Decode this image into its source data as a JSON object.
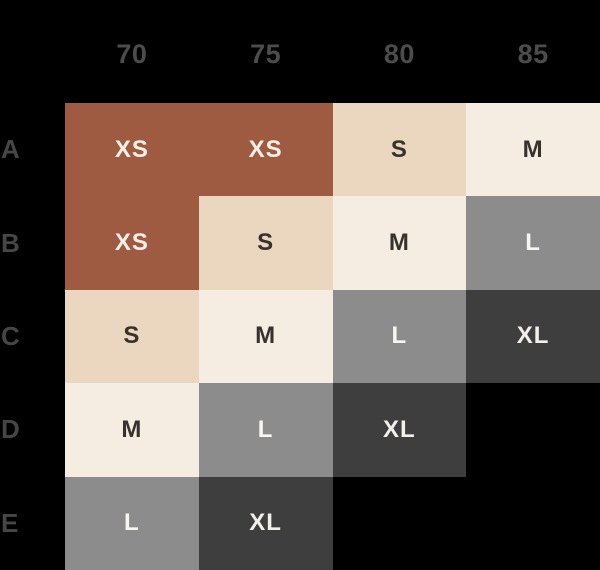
{
  "chart_data": {
    "type": "heatmap",
    "title": "",
    "x_categories": [
      "70",
      "75",
      "80",
      "85"
    ],
    "y_categories": [
      "A",
      "B",
      "C",
      "D",
      "E"
    ],
    "cell_values": [
      [
        "XS",
        "XS",
        "S",
        "M"
      ],
      [
        "XS",
        "S",
        "M",
        "L"
      ],
      [
        "S",
        "M",
        "L",
        "XL"
      ],
      [
        "M",
        "L",
        "XL",
        null
      ],
      [
        "L",
        "XL",
        null,
        null
      ]
    ],
    "value_colors": {
      "XS": "#9e5b42",
      "S": "#ebd6bf",
      "M": "#f5ece2",
      "L": "#8c8c8c",
      "XL": "#3e3e3e"
    },
    "legend_position": "none",
    "grid": false
  },
  "colors": {
    "background": "#000000",
    "header_text": "#4c4c4c",
    "row_label_text": "#464646",
    "dark_cell_text": "#37322d",
    "light_cell_text": "#f8f2ea"
  },
  "chart": {
    "column_headers": [
      "70",
      "75",
      "80",
      "85"
    ],
    "row_labels": [
      "A",
      "B",
      "C",
      "D",
      "E"
    ],
    "cells": [
      [
        {
          "label": "XS",
          "bg": "#9e5b42",
          "fg": "#f9f1e8"
        },
        {
          "label": "XS",
          "bg": "#9e5b42",
          "fg": "#f9f1e8"
        },
        {
          "label": "S",
          "bg": "#ebd6bf",
          "fg": "#37322d"
        },
        {
          "label": "M",
          "bg": "#f5ece2",
          "fg": "#37322d"
        }
      ],
      [
        {
          "label": "XS",
          "bg": "#9e5b42",
          "fg": "#f9f1e8"
        },
        {
          "label": "S",
          "bg": "#ebd6bf",
          "fg": "#37322d"
        },
        {
          "label": "M",
          "bg": "#f5ece2",
          "fg": "#37322d"
        },
        {
          "label": "L",
          "bg": "#8c8c8c",
          "fg": "#f8f6f2"
        }
      ],
      [
        {
          "label": "S",
          "bg": "#ebd6bf",
          "fg": "#37322d"
        },
        {
          "label": "M",
          "bg": "#f5ece2",
          "fg": "#37322d"
        },
        {
          "label": "L",
          "bg": "#8c8c8c",
          "fg": "#f8f6f2"
        },
        {
          "label": "XL",
          "bg": "#3e3e3e",
          "fg": "#f3f0ec"
        }
      ],
      [
        {
          "label": "M",
          "bg": "#f5ece2",
          "fg": "#37322d"
        },
        {
          "label": "L",
          "bg": "#8c8c8c",
          "fg": "#f8f6f2"
        },
        {
          "label": "XL",
          "bg": "#3e3e3e",
          "fg": "#f3f0ec"
        },
        {
          "label": "",
          "bg": "#000000",
          "fg": "#000000"
        }
      ],
      [
        {
          "label": "L",
          "bg": "#8c8c8c",
          "fg": "#f8f6f2"
        },
        {
          "label": "XL",
          "bg": "#3e3e3e",
          "fg": "#f3f0ec"
        },
        {
          "label": "",
          "bg": "#000000",
          "fg": "#000000"
        },
        {
          "label": "",
          "bg": "#000000",
          "fg": "#000000"
        }
      ]
    ]
  }
}
